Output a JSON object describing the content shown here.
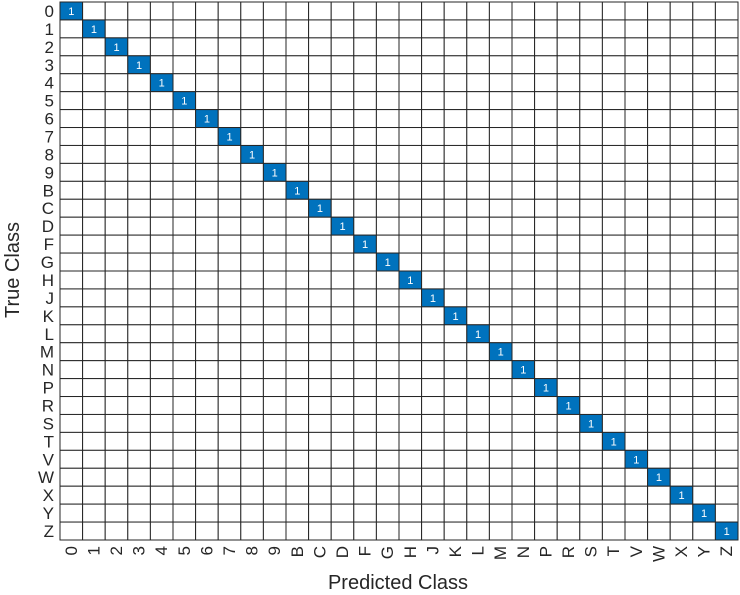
{
  "chart_data": {
    "type": "heatmap",
    "xlabel": "Predicted Class",
    "ylabel": "True Class",
    "classes": [
      "0",
      "1",
      "2",
      "3",
      "4",
      "5",
      "6",
      "7",
      "8",
      "9",
      "B",
      "C",
      "D",
      "F",
      "G",
      "H",
      "J",
      "K",
      "L",
      "M",
      "N",
      "P",
      "R",
      "S",
      "T",
      "V",
      "W",
      "X",
      "Y",
      "Z"
    ],
    "values_description": "confusion matrix; diagonal cells = 1, all other cells empty (0)",
    "diagonal_value": 1,
    "grid": true,
    "colors": {
      "filled_cell": "#0072BD",
      "empty_cell": "#ffffff",
      "grid_line": "#262626",
      "text_on_fill": "#ffffff"
    }
  }
}
